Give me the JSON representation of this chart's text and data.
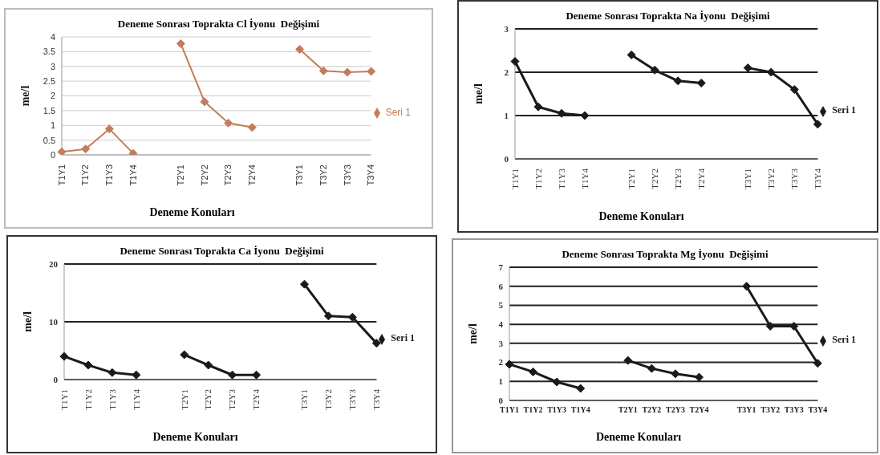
{
  "chart_data": [
    {
      "type": "line",
      "title": "Deneme Sonrası Toprakta Cl İyonu  Değişimi",
      "xlabel": "Deneme Konuları",
      "ylabel": "me/l",
      "categories": [
        "T1Y1",
        "T1Y2",
        "T1Y3",
        "T1Y4",
        null,
        "T2Y1",
        "T2Y2",
        "T2Y3",
        "T2Y4",
        null,
        "T3Y1",
        "T3Y2",
        "T3Y3",
        "T3Y4"
      ],
      "series": [
        {
          "name": "Seri 1",
          "color": "#c47c5a",
          "values": [
            0.1,
            0.2,
            0.88,
            0.05,
            null,
            3.77,
            1.8,
            1.08,
            0.93,
            null,
            3.58,
            2.85,
            2.8,
            2.83
          ]
        }
      ],
      "ylim": [
        0,
        4
      ],
      "yticks": [
        0,
        0.5,
        1,
        1.5,
        2,
        2.5,
        3,
        3.5,
        4
      ],
      "grid": "y",
      "legend": "right",
      "marker": "diamond"
    },
    {
      "type": "line",
      "title": "Deneme Sonrası Toprakta Na İyonu  Değişimi",
      "xlabel": "Deneme Konuları",
      "ylabel": "me/l",
      "categories": [
        "T1Y1",
        "T1Y2",
        "T1Y3",
        "T1Y4",
        null,
        "T2Y1",
        "T2Y2",
        "T2Y3",
        "T2Y4",
        null,
        "T3Y1",
        "T3Y2",
        "T3Y3",
        "T3Y4"
      ],
      "series": [
        {
          "name": "Seri 1",
          "color": "#1a1a1a",
          "values": [
            2.25,
            1.2,
            1.05,
            1.0,
            null,
            2.4,
            2.05,
            1.8,
            1.75,
            null,
            2.1,
            2.0,
            1.6,
            0.8
          ]
        }
      ],
      "ylim": [
        0,
        3
      ],
      "yticks": [
        0,
        1,
        2,
        3
      ],
      "grid": "y",
      "legend": "right",
      "marker": "diamond"
    },
    {
      "type": "line",
      "title": "Deneme Sonrası Toprakta Ca İyonu  Değişimi",
      "xlabel": "Deneme Konuları",
      "ylabel": "me/l",
      "categories": [
        "T1Y1",
        "T1Y2",
        "T1Y3",
        "T1Y4",
        null,
        "T2Y1",
        "T2Y2",
        "T2Y3",
        "T2Y4",
        null,
        "T3Y1",
        "T3Y2",
        "T3Y3",
        "T3Y4"
      ],
      "series": [
        {
          "name": "Seri 1",
          "color": "#1a1a1a",
          "values": [
            4,
            2.5,
            1.2,
            0.8,
            null,
            4.3,
            2.5,
            0.8,
            0.8,
            null,
            16.5,
            11,
            10.8,
            6.3
          ]
        }
      ],
      "ylim": [
        0,
        20
      ],
      "yticks": [
        0,
        10,
        20
      ],
      "grid": "y",
      "legend": "right",
      "marker": "diamond"
    },
    {
      "type": "line",
      "title": "Deneme Sonrası Toprakta Mg İyonu  Değişimi",
      "xlabel": "Deneme Konuları",
      "ylabel": "me/l",
      "categories": [
        "T1Y1",
        "T1Y2",
        "T1Y3",
        "T1Y4",
        null,
        "T2Y1",
        "T2Y2",
        "T2Y3",
        "T2Y4",
        null,
        "T3Y1",
        "T3Y2",
        "T3Y3",
        "T3Y4"
      ],
      "series": [
        {
          "name": "Seri 1",
          "color": "#1a1a1a",
          "values": [
            1.9,
            1.5,
            0.97,
            0.63,
            null,
            2.1,
            1.68,
            1.4,
            1.22,
            null,
            6.0,
            3.9,
            3.9,
            1.95
          ]
        }
      ],
      "ylim": [
        0,
        7
      ],
      "yticks": [
        0,
        1,
        2,
        3,
        4,
        5,
        6,
        7
      ],
      "grid": "y",
      "legend": "right",
      "marker": "diamond"
    }
  ]
}
